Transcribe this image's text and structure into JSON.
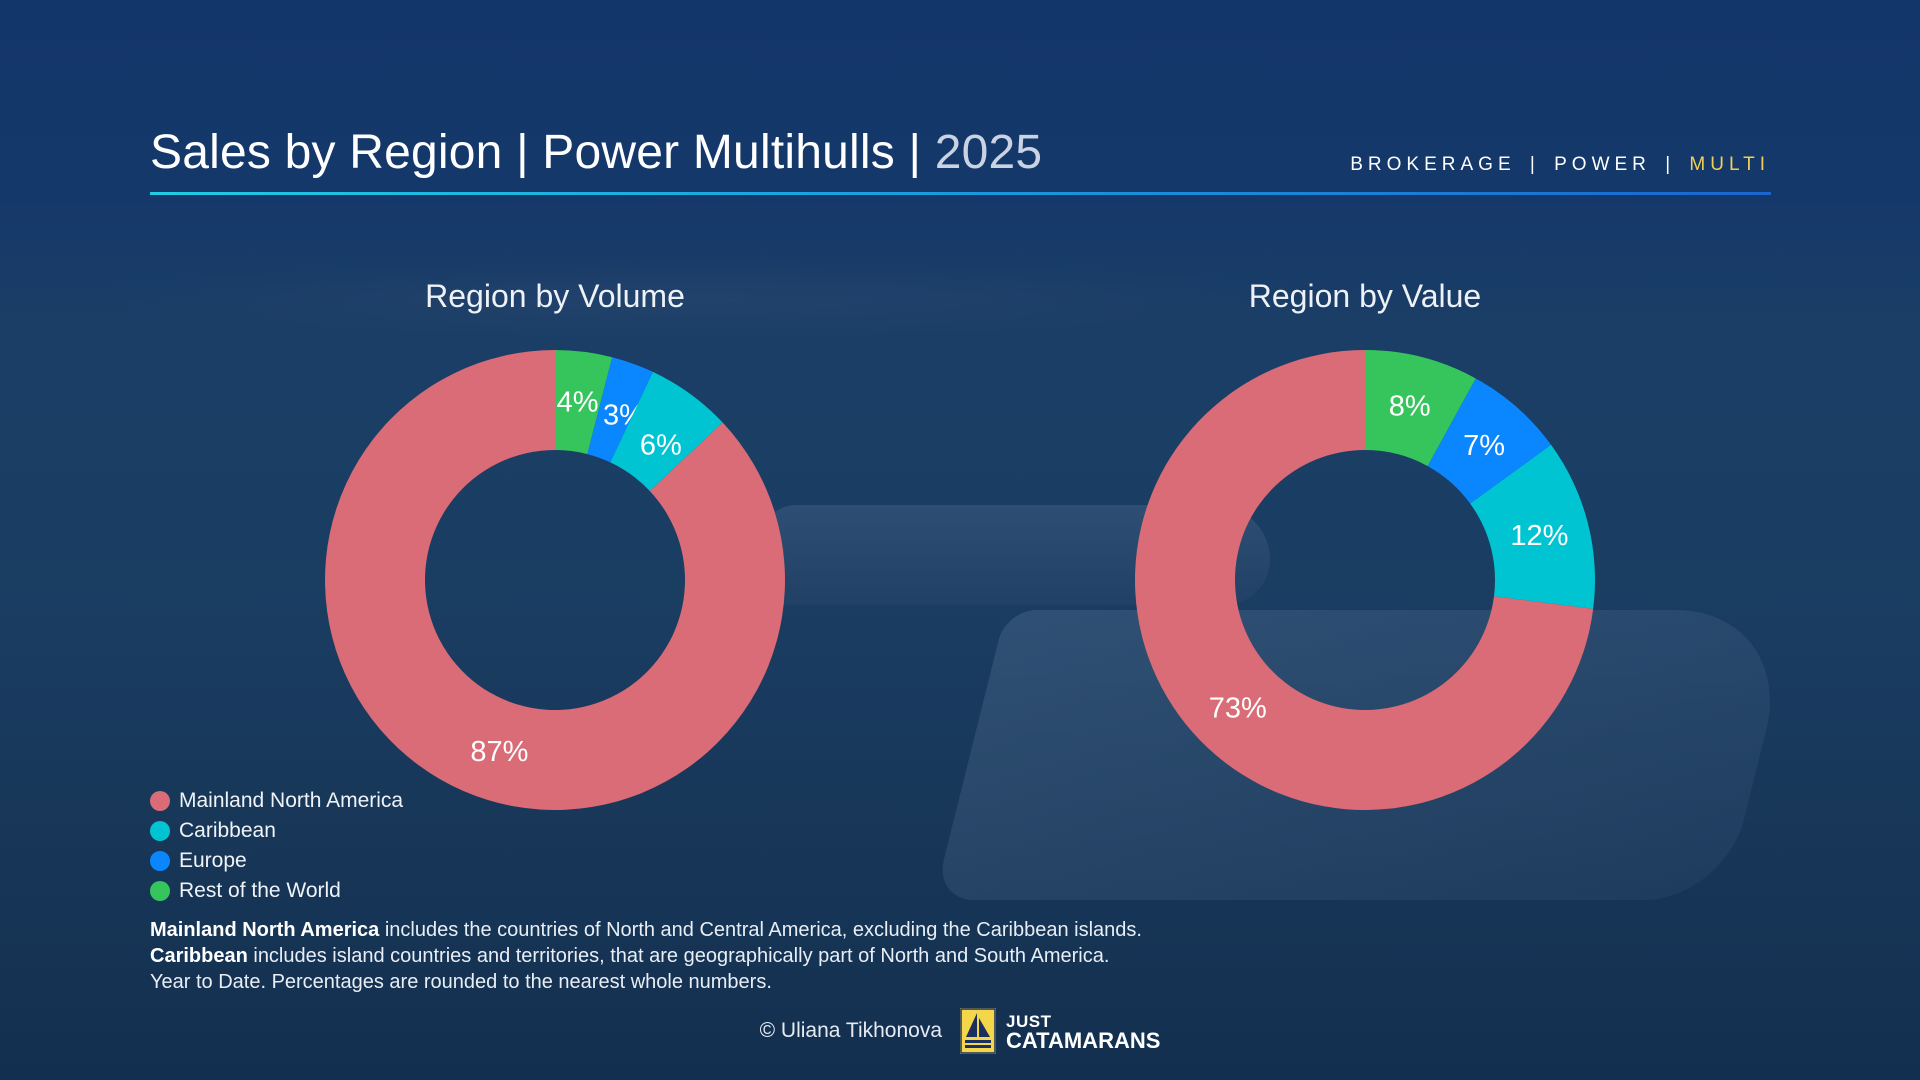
{
  "header": {
    "title_main": "Sales by Region | Power Multihulls | ",
    "title_year": "2025",
    "nav": [
      {
        "label": "BROKERAGE",
        "active": false
      },
      {
        "label": "POWER",
        "active": false
      },
      {
        "label": "MULTI",
        "active": true
      }
    ],
    "nav_separator": "|"
  },
  "colors": {
    "mainland_north_america": "#d96c76",
    "caribbean": "#00c4d2",
    "europe": "#0a86ff",
    "rest_of_world": "#36c55c",
    "accent_active": "#f2cf55",
    "rule_start": "#22cbe3",
    "rule_end": "#1a66d0"
  },
  "legend": [
    {
      "label": "Mainland North America",
      "color": "#d96c76"
    },
    {
      "label": "Caribbean",
      "color": "#00c4d2"
    },
    {
      "label": "Europe",
      "color": "#0a86ff"
    },
    {
      "label": "Rest of the World",
      "color": "#36c55c"
    }
  ],
  "notes": {
    "line1_bold": "Mainland North America",
    "line1_rest": " includes the countries of North and Central America, excluding the Caribbean islands.",
    "line2_bold": "Caribbean",
    "line2_rest": " includes island countries and territories, that are geographically part of North and South America.",
    "line3": "Year to Date. Percentages are rounded to the nearest whole numbers."
  },
  "footer": {
    "copyright": "© Uliana Tikhonova",
    "logo_line1": "JUST",
    "logo_line2": "CATAMARANS"
  },
  "chart_data": [
    {
      "type": "pie",
      "subtype": "donut",
      "title": "Region by Volume",
      "categories": [
        "Rest of the World",
        "Europe",
        "Caribbean",
        "Mainland North America"
      ],
      "values": [
        4,
        3,
        6,
        87
      ],
      "labels": [
        "4%",
        "3%",
        "6%",
        "87%"
      ],
      "colors": [
        "#36c55c",
        "#0a86ff",
        "#00c4d2",
        "#d96c76"
      ],
      "start_angle": "12 o'clock, clockwise",
      "legend_position": "bottom-left"
    },
    {
      "type": "pie",
      "subtype": "donut",
      "title": "Region by Value",
      "categories": [
        "Rest of the World",
        "Europe",
        "Caribbean",
        "Mainland North America"
      ],
      "values": [
        8,
        7,
        12,
        73
      ],
      "labels": [
        "8%",
        "7%",
        "12%",
        "73%"
      ],
      "colors": [
        "#36c55c",
        "#0a86ff",
        "#00c4d2",
        "#d96c76"
      ],
      "start_angle": "12 o'clock, clockwise",
      "legend_position": "bottom-left"
    }
  ]
}
